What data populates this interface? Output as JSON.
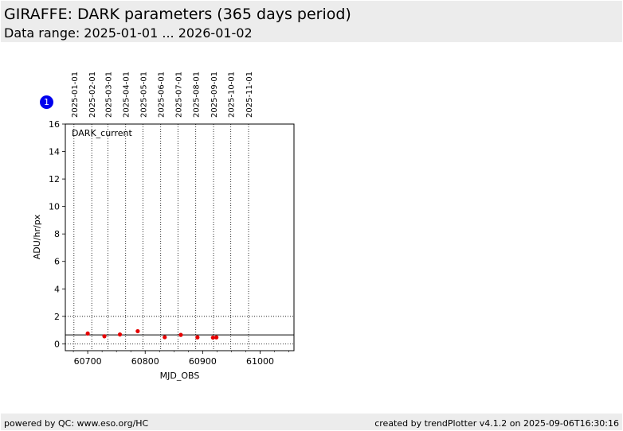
{
  "header": {
    "title": "GIRAFFE: DARK parameters (365 days period)",
    "subtitle": "Data range: 2025-01-01 ... 2026-01-02"
  },
  "badge": {
    "label": "1"
  },
  "footer": {
    "left": "powered by QC: www.eso.org/HC",
    "right": "created by trendPlotter v4.1.2 on 2025-09-06T16:30:16"
  },
  "chart_data": {
    "type": "scatter",
    "panel_label": "DARK_current",
    "xlabel": "MJD_OBS",
    "ylabel": "ADU/hr/px",
    "xlim": [
      60661,
      61059
    ],
    "ylim": [
      -0.5,
      16
    ],
    "xticks": [
      60700,
      60800,
      60900,
      61000
    ],
    "yticks": [
      0,
      2,
      4,
      6,
      8,
      10,
      12,
      14,
      16
    ],
    "date_markers": [
      {
        "label": "2025-01-01",
        "mjd": 60676
      },
      {
        "label": "2025-02-01",
        "mjd": 60707
      },
      {
        "label": "2025-03-01",
        "mjd": 60735
      },
      {
        "label": "2025-04-01",
        "mjd": 60766
      },
      {
        "label": "2025-05-01",
        "mjd": 60796
      },
      {
        "label": "2025-06-01",
        "mjd": 60827
      },
      {
        "label": "2025-07-01",
        "mjd": 60857
      },
      {
        "label": "2025-08-01",
        "mjd": 60888
      },
      {
        "label": "2025-09-01",
        "mjd": 60919
      },
      {
        "label": "2025-10-01",
        "mjd": 60949
      },
      {
        "label": "2025-11-01",
        "mjd": 60980
      }
    ],
    "reference_line": 0.65,
    "threshold_lines": [
      0.0,
      2.0
    ],
    "series": [
      {
        "color": "#e60000",
        "points": [
          {
            "x": 60700,
            "y": 0.75
          },
          {
            "x": 60729,
            "y": 0.55
          },
          {
            "x": 60756,
            "y": 0.68
          },
          {
            "x": 60787,
            "y": 0.92
          },
          {
            "x": 60834,
            "y": 0.48
          },
          {
            "x": 60862,
            "y": 0.65
          },
          {
            "x": 60891,
            "y": 0.47
          },
          {
            "x": 60918,
            "y": 0.45
          },
          {
            "x": 60924,
            "y": 0.47
          }
        ]
      }
    ]
  }
}
